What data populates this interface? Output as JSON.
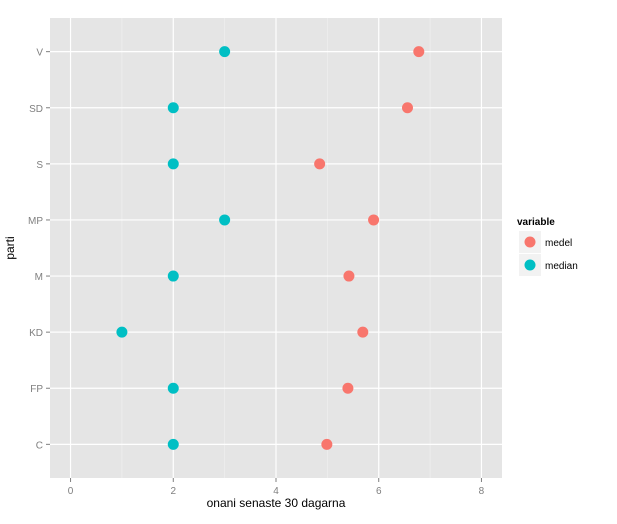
{
  "chart_data": {
    "type": "scatter",
    "title": "",
    "xlabel": "onani senaste 30 dagarna",
    "ylabel": "parti",
    "xlim": [
      -0.4,
      8.4
    ],
    "xticks": [
      "0",
      "2",
      "4",
      "6",
      "8"
    ],
    "categories": [
      "C",
      "FP",
      "KD",
      "M",
      "MP",
      "S",
      "SD",
      "V"
    ],
    "grid": true,
    "legend": {
      "title": "variable",
      "placement": "right"
    },
    "series": [
      {
        "name": "medel",
        "color": "#F8766D",
        "values": [
          4.99,
          5.4,
          5.69,
          5.42,
          5.9,
          4.85,
          6.56,
          6.78
        ]
      },
      {
        "name": "median",
        "color": "#00BFC4",
        "values": [
          2,
          2,
          1,
          2,
          3,
          2,
          2,
          3
        ]
      }
    ]
  }
}
